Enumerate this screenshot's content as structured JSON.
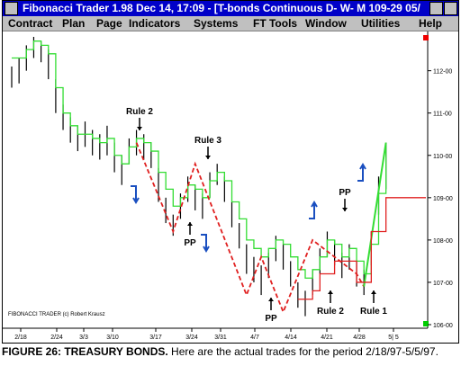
{
  "window": {
    "title": "Fibonacci Trader 1.98 Dec 14, 17:09 - [T-bonds Continuous D- W- M 109-29 05/",
    "menu": [
      "Contract",
      "Plan",
      "Page",
      "Indicators",
      "Systems",
      "FT Tools",
      "Window",
      "Utilities",
      "Help"
    ]
  },
  "chart": {
    "ylim": [
      106,
      112.8
    ],
    "yticks": [
      {
        "value": 112,
        "label": "112-00"
      },
      {
        "value": 111,
        "label": "111-00"
      },
      {
        "value": 110,
        "label": "110-00"
      },
      {
        "value": 109,
        "label": "109-00"
      },
      {
        "value": 108,
        "label": "108-00"
      },
      {
        "value": 107,
        "label": "107-00"
      },
      {
        "value": 106,
        "label": "106-00"
      }
    ],
    "xticks": [
      "2/18",
      "2/24",
      "3/3",
      "3/10",
      "3/17",
      "3/24",
      "3/31",
      "4/7",
      "4/14",
      "4/21",
      "4/28",
      "5| 5"
    ],
    "high": [
      112.1,
      112.3,
      112.6,
      112.8,
      112.7,
      112.5,
      111.8,
      111.2,
      110.9,
      110.7,
      110.8,
      110.6,
      110.5,
      110.7,
      110.3,
      110.0,
      110.4,
      110.6,
      110.5,
      110.3,
      109.7,
      109.0,
      108.6,
      109.1,
      109.5,
      109.3,
      109.1,
      109.6,
      109.8,
      109.5,
      108.9,
      108.4,
      107.9,
      107.6,
      107.4,
      107.7,
      108.1,
      107.9,
      107.5,
      107.0,
      106.8,
      107.3,
      107.8,
      108.2,
      108.0,
      107.7,
      107.9,
      107.5,
      107.3,
      108.2,
      109.5,
      110.3
    ],
    "low": [
      111.6,
      111.7,
      112.0,
      112.3,
      112.2,
      111.8,
      111.0,
      110.6,
      110.3,
      110.1,
      110.2,
      110.0,
      109.9,
      110.0,
      109.6,
      109.3,
      109.8,
      110.0,
      109.9,
      109.7,
      108.9,
      108.4,
      108.1,
      108.5,
      108.9,
      108.7,
      108.5,
      109.0,
      109.3,
      108.9,
      108.3,
      107.8,
      107.2,
      107.0,
      106.7,
      107.1,
      107.5,
      107.3,
      106.9,
      106.4,
      106.2,
      106.7,
      107.2,
      107.6,
      107.4,
      107.1,
      107.3,
      106.9,
      106.7,
      107.4,
      108.6,
      109.2
    ],
    "green_line": [
      112.3,
      112.3,
      112.5,
      112.7,
      112.6,
      112.4,
      111.6,
      111.0,
      110.7,
      110.5,
      110.5,
      110.4,
      110.3,
      110.4,
      110.0,
      109.8,
      110.2,
      110.4,
      110.3,
      110.1,
      109.6,
      109.2,
      108.8,
      109.0,
      109.3,
      109.2,
      109.0,
      109.4,
      109.6,
      109.4,
      108.9,
      108.5,
      108.0,
      107.8,
      107.6,
      107.8,
      108.0,
      107.9,
      107.6,
      107.3,
      107.1,
      107.3,
      107.6,
      108.0,
      107.9,
      107.6,
      107.8,
      107.5,
      107.2,
      107.9,
      109.1,
      110.3
    ],
    "swing_line": [
      110.3,
      108.2,
      109.8,
      106.7,
      107.6,
      106.3,
      108.0,
      107.2,
      106.9
    ],
    "stop_line": [
      106.6,
      106.6,
      106.8,
      107.2,
      107.2,
      107.5,
      107.5,
      107.5,
      107.0,
      107.0,
      108.2,
      108.2,
      109.0
    ],
    "annotations": [
      "Rule 2",
      "Rule 3",
      "PP",
      "PP",
      "Rule 2",
      "Rule 1",
      "PP"
    ],
    "copyright": "FIBONACCI TRADER (c) Robert Krausz"
  },
  "caption": {
    "label": "FIGURE 26: TREASURY BONDS.",
    "text": "Here are the actual trades for the period 2/18/97-5/5/97."
  }
}
